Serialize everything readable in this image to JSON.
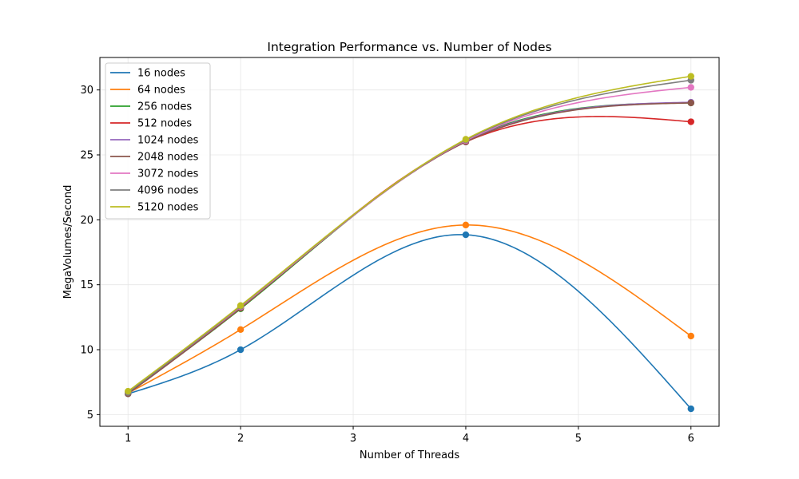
{
  "chart_data": {
    "type": "line",
    "title": "Integration Performance vs. Number of Nodes",
    "xlabel": "Number of Threads",
    "ylabel": "MegaVolumes/Second",
    "x": [
      1,
      2,
      4,
      6
    ],
    "xlim": [
      0.75,
      6.25
    ],
    "ylim": [
      4.1,
      32.5
    ],
    "xticks": [
      1,
      2,
      3,
      4,
      5,
      6
    ],
    "yticks": [
      5,
      10,
      15,
      20,
      25,
      30
    ],
    "grid": true,
    "legend_position": "top-left",
    "series": [
      {
        "name": "16 nodes",
        "color": "#1f77b4",
        "values": [
          6.6,
          10.0,
          18.85,
          5.45
        ]
      },
      {
        "name": "64 nodes",
        "color": "#ff7f0e",
        "values": [
          6.65,
          11.55,
          19.6,
          11.05
        ]
      },
      {
        "name": "256 nodes",
        "color": "#2ca02c",
        "values": [
          6.7,
          13.15,
          26.1,
          29.0
        ]
      },
      {
        "name": "512 nodes",
        "color": "#d62728",
        "values": [
          6.7,
          13.2,
          26.0,
          27.55
        ]
      },
      {
        "name": "1024 nodes",
        "color": "#9467bd",
        "values": [
          6.7,
          13.25,
          26.05,
          29.05
        ]
      },
      {
        "name": "2048 nodes",
        "color": "#8c564b",
        "values": [
          6.6,
          13.2,
          26.0,
          29.0
        ]
      },
      {
        "name": "3072 nodes",
        "color": "#e377c2",
        "values": [
          6.75,
          13.3,
          26.1,
          30.2
        ]
      },
      {
        "name": "4096 nodes",
        "color": "#7f7f7f",
        "values": [
          6.7,
          13.35,
          26.15,
          30.75
        ]
      },
      {
        "name": "5120 nodes",
        "color": "#bcbd22",
        "values": [
          6.8,
          13.4,
          26.2,
          31.05
        ]
      }
    ]
  }
}
